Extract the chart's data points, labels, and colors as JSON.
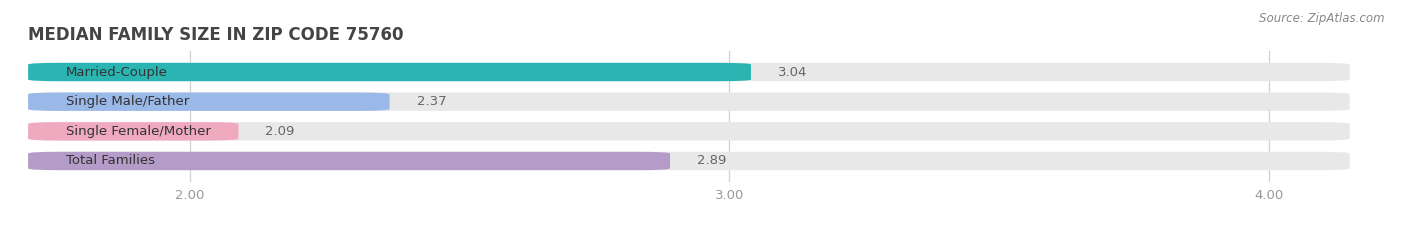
{
  "title": "MEDIAN FAMILY SIZE IN ZIP CODE 75760",
  "source": "Source: ZipAtlas.com",
  "categories": [
    "Married-Couple",
    "Single Male/Father",
    "Single Female/Mother",
    "Total Families"
  ],
  "values": [
    3.04,
    2.37,
    2.09,
    2.89
  ],
  "bar_colors": [
    "#2ab5b2",
    "#9ab8e8",
    "#f0aabf",
    "#b49bc8"
  ],
  "bar_bg_color": "#e8e8e8",
  "xlim_data": [
    1.7,
    4.15
  ],
  "x_axis_min": 1.7,
  "x_axis_max": 4.15,
  "xticks": [
    2.0,
    3.0,
    4.0
  ],
  "xtick_labels": [
    "2.00",
    "3.00",
    "4.00"
  ],
  "bar_height": 0.62,
  "label_fontsize": 9.5,
  "value_fontsize": 9.5,
  "title_fontsize": 12,
  "source_fontsize": 8.5,
  "background_color": "#ffffff",
  "value_color": "#666666",
  "label_color": "#333333",
  "tick_color": "#999999",
  "grid_color": "#d0d0d0",
  "rounding_size": 0.06
}
